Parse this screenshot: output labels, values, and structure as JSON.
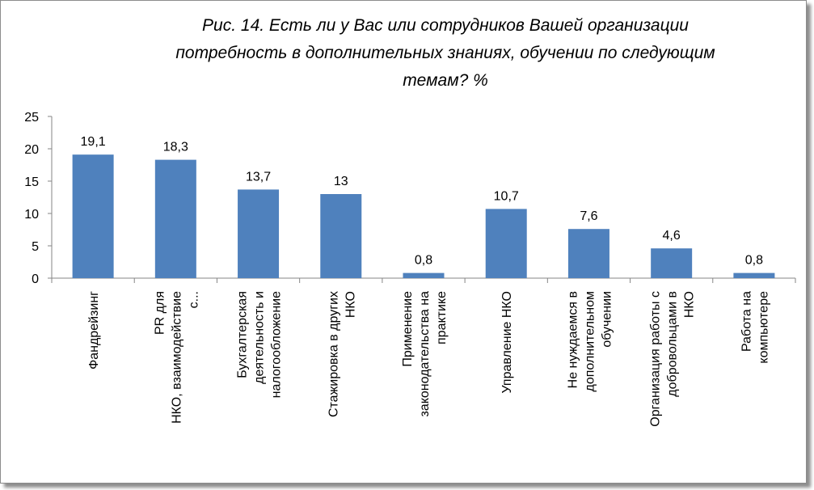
{
  "chart_data": {
    "type": "bar",
    "title_lines": [
      "Рис. 14. Есть ли у Вас или сотрудников Вашей организации",
      "потребность в дополнительных знаниях, обучении по следующим",
      "темам? %"
    ],
    "categories": [
      [
        "Фандрейзинг"
      ],
      [
        "PR для",
        "НКО, взаимодействие",
        "с..."
      ],
      [
        "Бухгалтерская",
        "деятельность и",
        "налогообложение"
      ],
      [
        "Стажировка в других",
        "НКО"
      ],
      [
        "Применение",
        "законодательства на",
        "практике"
      ],
      [
        "Управление НКО"
      ],
      [
        "Не нуждаемся в",
        "дополнительном",
        "обучении"
      ],
      [
        "Организация работы с",
        "добровольцами в",
        "НКО"
      ],
      [
        "Работа на",
        "компьютере"
      ]
    ],
    "values": [
      19.1,
      18.3,
      13.7,
      13,
      0.8,
      10.7,
      7.6,
      4.6,
      0.8
    ],
    "value_labels": [
      "19,1",
      "18,3",
      "13,7",
      "13",
      "0,8",
      "10,7",
      "7,6",
      "4,6",
      "0,8"
    ],
    "ylim": [
      0,
      25
    ],
    "yticks": [
      0,
      5,
      10,
      15,
      20,
      25
    ],
    "legend": "none",
    "grid": false,
    "bar_color": "#4f81bd"
  }
}
